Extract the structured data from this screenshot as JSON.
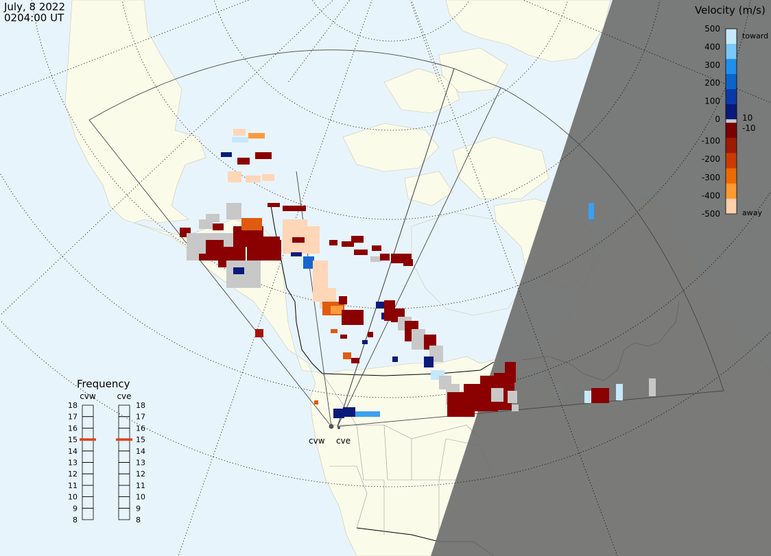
{
  "header": {
    "date": "July, 8 2022",
    "time": "0204:00 UT"
  },
  "colorbar": {
    "title": "Velocity (m/s)",
    "ticks": [
      "500",
      "400",
      "300",
      "200",
      "100",
      "0",
      "-100",
      "-200",
      "-300",
      "-400",
      "-500"
    ],
    "tick_values": [
      500,
      400,
      300,
      200,
      100,
      0,
      -100,
      -200,
      -300,
      -400,
      -500
    ],
    "toward_label": "toward",
    "away_label": "away",
    "plus_label": "10",
    "minus_label": "-10",
    "colors_toward": [
      "#0a1a7a",
      "#0a3aa8",
      "#0a64cc",
      "#1e90ee",
      "#78c8f8",
      "#c6e8fc"
    ],
    "colors_away": [
      "#7a0000",
      "#a01a00",
      "#cc3a00",
      "#ee6a00",
      "#ff9a30",
      "#ffd0a8"
    ],
    "ground_scatter_color": "#c8c8c8"
  },
  "frequency": {
    "title": "Frequency",
    "radars": [
      "cvw",
      "cve"
    ],
    "scale": [
      "18",
      "17",
      "16",
      "15",
      "14",
      "13",
      "12",
      "11",
      "10",
      "9",
      "8"
    ],
    "scale_values": [
      18,
      17,
      16,
      15,
      14,
      13,
      12,
      11,
      10,
      9,
      8
    ],
    "cvw_value_mhz": 15,
    "cve_value_mhz": 15,
    "indicator_color": "#e0401a"
  },
  "map": {
    "radar_sites": [
      "cvw",
      "cve"
    ],
    "ocean_color": "#e8f4fb",
    "land_color": "#fbfbea",
    "night_color": "#7a7a7a"
  }
}
